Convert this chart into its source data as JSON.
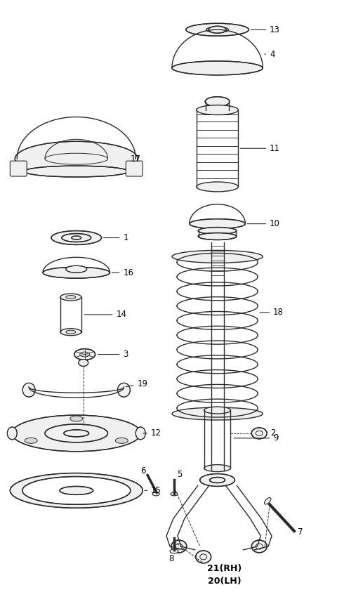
{
  "background_color": "#ffffff",
  "line_color": "#2a2a2a",
  "text_color": "#000000",
  "fig_width": 4.8,
  "fig_height": 8.5,
  "dpi": 100
}
